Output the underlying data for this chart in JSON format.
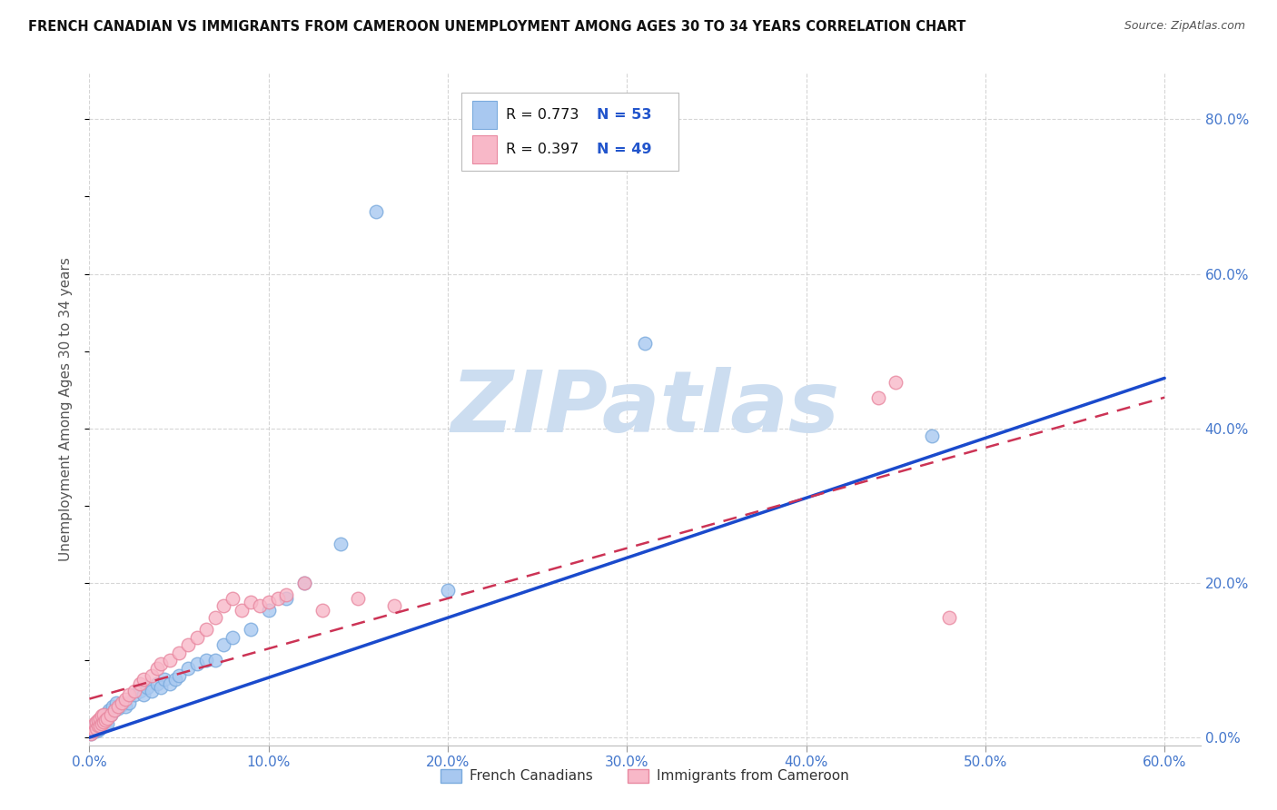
{
  "title": "FRENCH CANADIAN VS IMMIGRANTS FROM CAMEROON UNEMPLOYMENT AMONG AGES 30 TO 34 YEARS CORRELATION CHART",
  "source": "Source: ZipAtlas.com",
  "ylabel": "Unemployment Among Ages 30 to 34 years",
  "xlim": [
    0.0,
    0.62
  ],
  "ylim": [
    -0.01,
    0.86
  ],
  "xticks": [
    0.0,
    0.1,
    0.2,
    0.3,
    0.4,
    0.5,
    0.6
  ],
  "xticklabels": [
    "0.0%",
    "10.0%",
    "20.0%",
    "30.0%",
    "40.0%",
    "50.0%",
    "60.0%"
  ],
  "yticks_right": [
    0.0,
    0.2,
    0.4,
    0.6,
    0.8
  ],
  "yticklabels_right": [
    "0.0%",
    "20.0%",
    "40.0%",
    "60.0%",
    "80.0%"
  ],
  "background_color": "#ffffff",
  "watermark": "ZIPatlas",
  "watermark_color": "#ccddf0",
  "legend_R1": "R = 0.773",
  "legend_N1": "N = 53",
  "legend_R2": "R = 0.397",
  "legend_N2": "N = 49",
  "legend_label1": "French Canadians",
  "legend_label2": "Immigrants from Cameroon",
  "series1_color": "#a8c8f0",
  "series1_edge": "#7aaadd",
  "series2_color": "#f8b8c8",
  "series2_edge": "#e888a0",
  "line1_color": "#1a4acc",
  "line2_color": "#cc3355",
  "grid_color": "#cccccc",
  "tick_color": "#4477cc",
  "french_x": [
    0.001,
    0.002,
    0.003,
    0.003,
    0.004,
    0.004,
    0.005,
    0.005,
    0.006,
    0.006,
    0.007,
    0.007,
    0.008,
    0.008,
    0.009,
    0.009,
    0.01,
    0.01,
    0.011,
    0.012,
    0.013,
    0.014,
    0.015,
    0.016,
    0.018,
    0.02,
    0.022,
    0.025,
    0.028,
    0.03,
    0.032,
    0.035,
    0.038,
    0.04,
    0.042,
    0.045,
    0.048,
    0.05,
    0.055,
    0.06,
    0.065,
    0.07,
    0.075,
    0.08,
    0.09,
    0.1,
    0.11,
    0.12,
    0.14,
    0.16,
    0.2,
    0.31,
    0.47
  ],
  "french_y": [
    0.005,
    0.008,
    0.01,
    0.015,
    0.008,
    0.018,
    0.01,
    0.02,
    0.012,
    0.022,
    0.015,
    0.025,
    0.015,
    0.028,
    0.018,
    0.03,
    0.018,
    0.032,
    0.035,
    0.03,
    0.04,
    0.035,
    0.045,
    0.038,
    0.042,
    0.04,
    0.045,
    0.055,
    0.06,
    0.055,
    0.065,
    0.06,
    0.07,
    0.065,
    0.075,
    0.07,
    0.075,
    0.08,
    0.09,
    0.095,
    0.1,
    0.1,
    0.12,
    0.13,
    0.14,
    0.165,
    0.18,
    0.2,
    0.25,
    0.68,
    0.19,
    0.51,
    0.39
  ],
  "cameroon_x": [
    0.001,
    0.002,
    0.003,
    0.003,
    0.004,
    0.004,
    0.005,
    0.005,
    0.006,
    0.006,
    0.007,
    0.007,
    0.008,
    0.008,
    0.009,
    0.01,
    0.012,
    0.014,
    0.016,
    0.018,
    0.02,
    0.022,
    0.025,
    0.028,
    0.03,
    0.035,
    0.038,
    0.04,
    0.045,
    0.05,
    0.055,
    0.06,
    0.065,
    0.07,
    0.075,
    0.08,
    0.085,
    0.09,
    0.095,
    0.1,
    0.105,
    0.11,
    0.12,
    0.13,
    0.15,
    0.17,
    0.44,
    0.45,
    0.48
  ],
  "cameroon_y": [
    0.005,
    0.008,
    0.01,
    0.018,
    0.012,
    0.02,
    0.015,
    0.022,
    0.016,
    0.025,
    0.018,
    0.028,
    0.02,
    0.03,
    0.022,
    0.025,
    0.03,
    0.035,
    0.04,
    0.045,
    0.05,
    0.055,
    0.06,
    0.07,
    0.075,
    0.08,
    0.09,
    0.095,
    0.1,
    0.11,
    0.12,
    0.13,
    0.14,
    0.155,
    0.17,
    0.18,
    0.165,
    0.175,
    0.17,
    0.175,
    0.18,
    0.185,
    0.2,
    0.165,
    0.18,
    0.17,
    0.44,
    0.46,
    0.155
  ],
  "line1_x0": 0.0,
  "line1_y0": 0.0,
  "line1_x1": 0.6,
  "line1_y1": 0.465,
  "line2_x0": 0.0,
  "line2_y0": 0.05,
  "line2_x1": 0.6,
  "line2_y1": 0.44
}
